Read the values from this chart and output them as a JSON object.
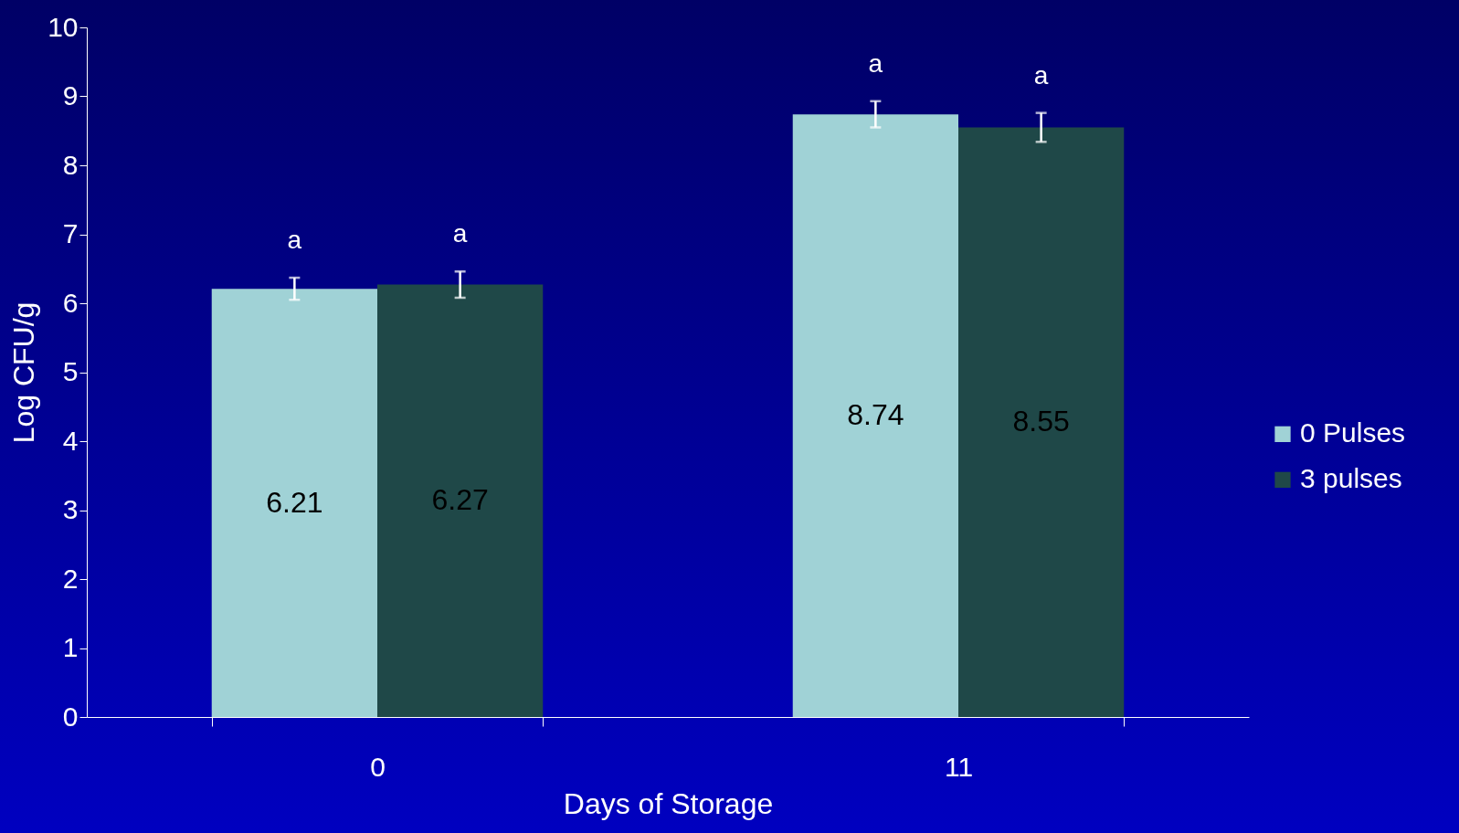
{
  "chart_data": {
    "type": "bar",
    "xlabel": "Days of Storage",
    "ylabel": "Log CFU/g",
    "categories": [
      "0",
      "11"
    ],
    "series": [
      {
        "name": "0 Pulses",
        "color": "#a0d2d6",
        "values": [
          6.21,
          8.74
        ],
        "errors": [
          0.16,
          0.19
        ]
      },
      {
        "name": "3 pulses",
        "color": "#1f4848",
        "values": [
          6.27,
          8.55
        ],
        "errors": [
          0.19,
          0.21
        ]
      }
    ],
    "ylim": [
      0,
      10
    ],
    "yticks": [
      0,
      1,
      2,
      3,
      4,
      5,
      6,
      7,
      8,
      9,
      10
    ],
    "data_labels": true,
    "legend": "right",
    "grid": false,
    "annotations": [
      "a",
      "a",
      "a",
      "a"
    ]
  }
}
